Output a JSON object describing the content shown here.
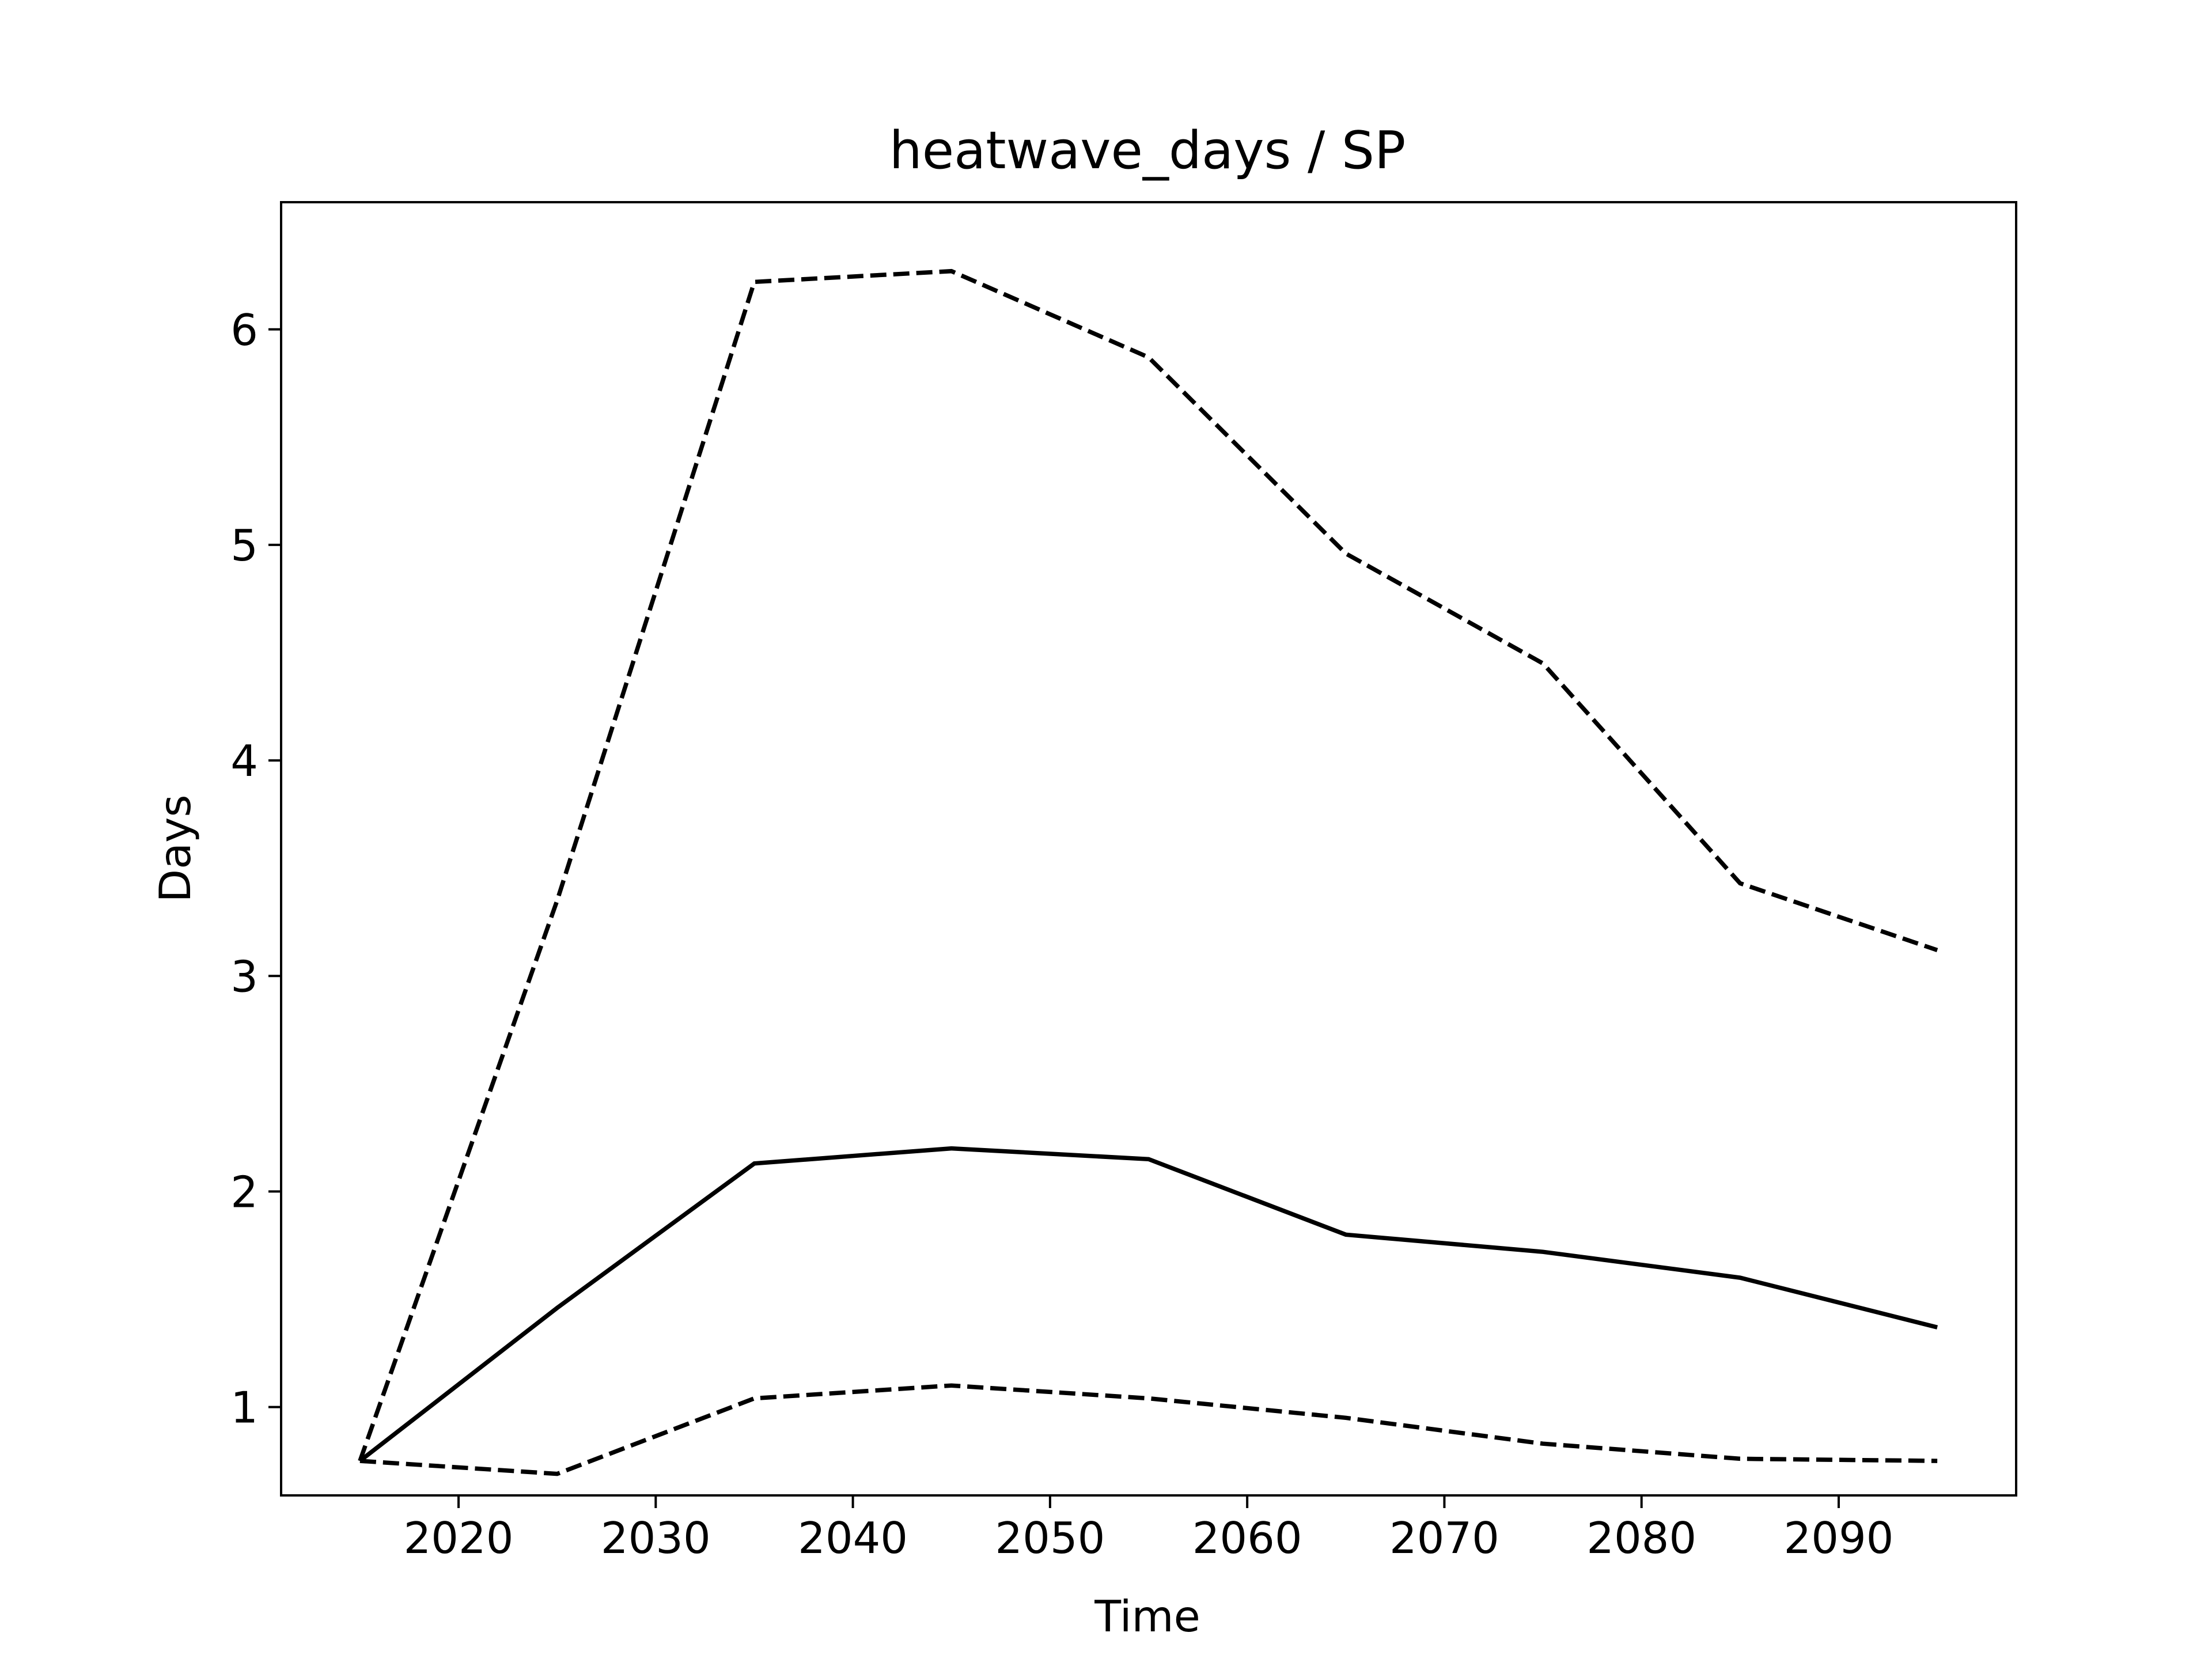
{
  "chart_data": {
    "type": "line",
    "title": "heatwave_days / SP",
    "xlabel": "Time",
    "ylabel": "Days",
    "xlim": [
      2011,
      2099
    ],
    "ylim": [
      0.59,
      6.59
    ],
    "x_ticks": [
      2020,
      2030,
      2040,
      2050,
      2060,
      2070,
      2080,
      2090
    ],
    "y_ticks": [
      1,
      2,
      3,
      4,
      5,
      6
    ],
    "grid": false,
    "x": [
      2015,
      2025,
      2035,
      2045,
      2055,
      2065,
      2075,
      2085,
      2095
    ],
    "series": [
      {
        "style": "dashed",
        "color": "#000000",
        "values": [
          0.75,
          3.35,
          6.22,
          6.27,
          5.87,
          4.96,
          4.45,
          3.43,
          3.12
        ]
      },
      {
        "style": "solid",
        "color": "#000000",
        "values": [
          0.75,
          1.46,
          2.13,
          2.2,
          2.15,
          1.8,
          1.72,
          1.6,
          1.37
        ]
      },
      {
        "style": "dashed",
        "color": "#000000",
        "values": [
          0.75,
          0.69,
          1.04,
          1.1,
          1.04,
          0.95,
          0.83,
          0.76,
          0.75
        ]
      }
    ]
  }
}
